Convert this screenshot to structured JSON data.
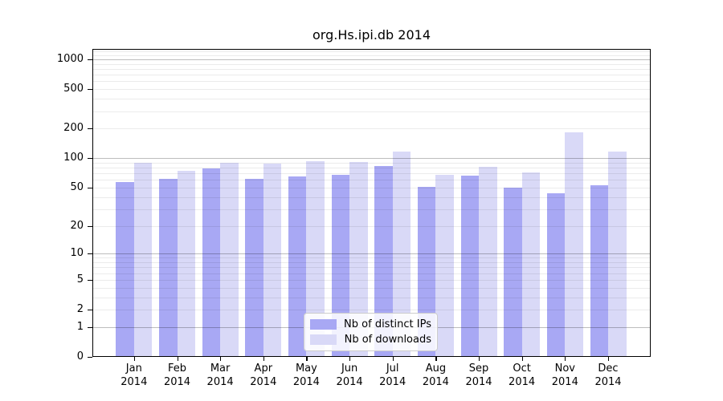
{
  "chart_data": {
    "type": "bar",
    "title": "org.Hs.ipi.db 2014",
    "categories": [
      "Jan",
      "Feb",
      "Mar",
      "Apr",
      "May",
      "Jun",
      "Jul",
      "Aug",
      "Sep",
      "Oct",
      "Nov",
      "Dec"
    ],
    "category_year": "2014",
    "series": [
      {
        "key": "distinct_ips",
        "name": "Nb of distinct IPs",
        "color": "#a8a8f4",
        "values": [
          57,
          61,
          78,
          62,
          65,
          68,
          83,
          51,
          66,
          50,
          44,
          53
        ]
      },
      {
        "key": "downloads",
        "name": "Nb of downloads",
        "color": "#d9d9f7",
        "values": [
          89,
          74,
          89,
          88,
          94,
          91,
          117,
          68,
          81,
          71,
          183,
          117
        ]
      }
    ],
    "yscale": "log1p",
    "yticks": [
      0,
      1,
      2,
      5,
      10,
      20,
      50,
      100,
      200,
      500,
      1000
    ],
    "ylim": [
      0,
      1280
    ],
    "xlabel": "",
    "ylabel": "",
    "grid": true,
    "legend_position": "lower-center",
    "colors": {
      "background": "#ffffff",
      "axis": "#000000",
      "major_grid": "rgba(0,0,0,0.26)",
      "minor_grid": "rgba(0,0,0,0.08)",
      "legend_border": "#cccccc"
    }
  }
}
